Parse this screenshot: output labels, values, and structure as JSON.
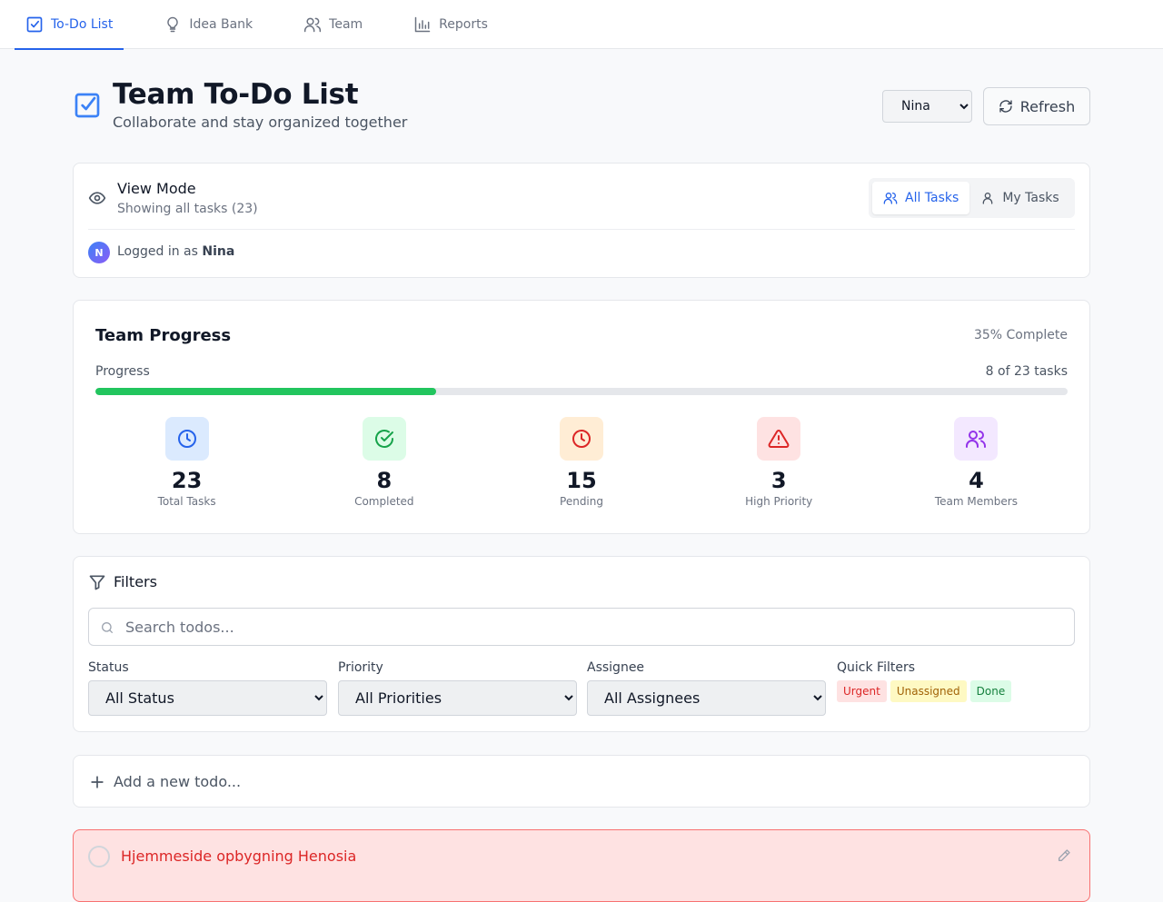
{
  "nav": {
    "tabs": [
      {
        "label": "To-Do List",
        "icon": "check-square-icon",
        "active": true
      },
      {
        "label": "Idea Bank",
        "icon": "lightbulb-icon",
        "active": false
      },
      {
        "label": "Team",
        "icon": "users-icon",
        "active": false
      },
      {
        "label": "Reports",
        "icon": "bar-chart-icon",
        "active": false
      }
    ]
  },
  "header": {
    "title": "Team To-Do List",
    "subtitle": "Collaborate and stay organized together",
    "user_select": {
      "value": "Nina",
      "options": [
        "Nina"
      ]
    },
    "refresh_label": "Refresh"
  },
  "view_mode": {
    "title": "View Mode",
    "subtitle": "Showing all tasks (23)",
    "toggle": {
      "all_label": "All Tasks",
      "mine_label": "My Tasks",
      "active": "all"
    },
    "logged_prefix": "Logged in as",
    "user_name": "Nina",
    "avatar_initial": "N"
  },
  "progress": {
    "title": "Team Progress",
    "percent_text": "35% Complete",
    "label": "Progress",
    "count_text": "8 of 23 tasks",
    "fraction": 0.35,
    "stats": [
      {
        "value": "23",
        "label": "Total Tasks",
        "icon": "clock-icon",
        "bg": "#dbeafe",
        "color": "#2563eb"
      },
      {
        "value": "8",
        "label": "Completed",
        "icon": "check-circle-icon",
        "bg": "#dcfce7",
        "color": "#16a34a"
      },
      {
        "value": "15",
        "label": "Pending",
        "icon": "clock-icon",
        "bg": "#ffedd5",
        "color": "#dc2626"
      },
      {
        "value": "3",
        "label": "High Priority",
        "icon": "alert-triangle-icon",
        "bg": "#fee2e2",
        "color": "#dc2626"
      },
      {
        "value": "4",
        "label": "Team Members",
        "icon": "users-icon",
        "bg": "#f3e8ff",
        "color": "#9333ea"
      }
    ]
  },
  "filters": {
    "title": "Filters",
    "search_placeholder": "Search todos...",
    "status": {
      "label": "Status",
      "value": "All Status"
    },
    "priority": {
      "label": "Priority",
      "value": "All Priorities"
    },
    "assignee": {
      "label": "Assignee",
      "value": "All Assignees"
    },
    "quick": {
      "label": "Quick Filters",
      "urgent": "Urgent",
      "unassigned": "Unassigned",
      "done": "Done"
    }
  },
  "add_todo": {
    "label": "Add a new todo..."
  },
  "todos": [
    {
      "title": "Hjemmeside opbygning Henosia"
    }
  ],
  "colors": {
    "accent": "#2563eb",
    "progress": "#22c55e",
    "urgent": "#dc2626"
  }
}
